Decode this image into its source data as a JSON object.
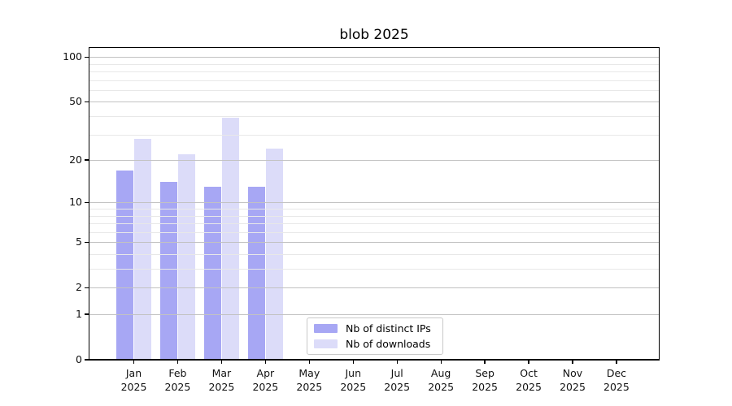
{
  "title": "blob 2025",
  "chart_data": {
    "type": "bar",
    "title": "blob 2025",
    "categories": [
      "Jan 2025",
      "Feb 2025",
      "Mar 2025",
      "Apr 2025",
      "May 2025",
      "Jun 2025",
      "Jul 2025",
      "Aug 2025",
      "Sep 2025",
      "Oct 2025",
      "Nov 2025",
      "Dec 2025"
    ],
    "series": [
      {
        "name": "Nb of distinct IPs",
        "color": "#a7a7f4",
        "values": [
          17,
          14,
          13,
          13,
          0,
          0,
          0,
          0,
          0,
          0,
          0,
          0
        ]
      },
      {
        "name": "Nb of downloads",
        "color": "#dcdcf9",
        "values": [
          28,
          22,
          39,
          24,
          0,
          0,
          0,
          0,
          0,
          0,
          0,
          0
        ]
      }
    ],
    "y_scale": "log1p",
    "y_ticks": [
      0,
      1,
      2,
      5,
      10,
      20,
      50,
      100
    ],
    "y_minor_ticks": [
      3,
      4,
      6,
      7,
      8,
      9,
      30,
      40,
      60,
      70,
      80,
      90
    ],
    "ylim": [
      0,
      115
    ],
    "grid": "horizontal",
    "legend_position": "lower center"
  },
  "legend": {
    "items": [
      {
        "label": "Nb of distinct IPs",
        "color": "#a7a7f4"
      },
      {
        "label": "Nb of downloads",
        "color": "#dcdcf9"
      }
    ]
  },
  "colors": {
    "grid_major": "#c2c2c2",
    "grid_minor": "#e8e8e8",
    "spine": "#000000",
    "background": "#ffffff"
  }
}
